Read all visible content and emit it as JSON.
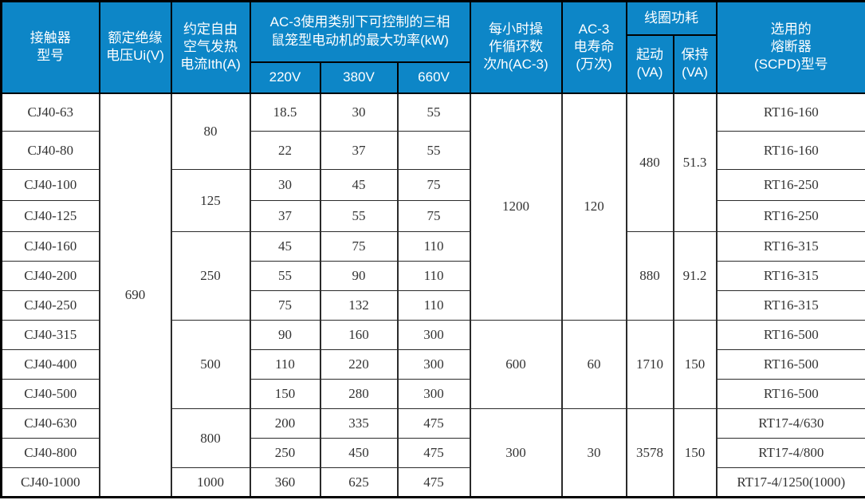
{
  "colors": {
    "header_bg": "#0d86c7",
    "header_text": "#ffffff",
    "border": "#000000",
    "body_text": "#333333"
  },
  "table": {
    "header_rows": [
      [
        {
          "t": "接触器\n型号",
          "rs": 3
        },
        {
          "t": "额定绝缘\n电压Ui(V)",
          "rs": 3
        },
        {
          "t": "约定自由\n空气发热\n电流Ith(A)",
          "rs": 3
        },
        {
          "t": "AC-3使用类别下可控制的三相\n鼠笼型电动机的最大功率(kW)",
          "rs": 2,
          "cs": 3
        },
        {
          "t": "每小时操\n作循环数\n次/h(AC-3)",
          "rs": 3
        },
        {
          "t": "AC-3\n电寿命\n(万次)",
          "rs": 3
        },
        {
          "t": "线圈功耗",
          "cs": 2
        },
        {
          "t": "选用的\n熔断器\n(SCPD)型号",
          "rs": 3
        }
      ],
      [
        {
          "t": "起动\n(VA)",
          "rs": 2
        },
        {
          "t": "保持\n(VA)",
          "rs": 2
        }
      ],
      [
        {
          "t": "220V"
        },
        {
          "t": "380V"
        },
        {
          "t": "660V"
        }
      ]
    ],
    "rows": [
      [
        {
          "t": "CJ40-63"
        },
        {
          "t": "690",
          "rs": 13
        },
        {
          "t": "80",
          "rs": 2
        },
        {
          "t": "18.5"
        },
        {
          "t": "30"
        },
        {
          "t": "55"
        },
        {
          "t": "1200",
          "rs": 7
        },
        {
          "t": "120",
          "rs": 7
        },
        {
          "t": "480",
          "rs": 4
        },
        {
          "t": "51.3",
          "rs": 4
        },
        {
          "t": "RT16-160"
        }
      ],
      [
        {
          "t": "CJ40-80"
        },
        {
          "t": "22"
        },
        {
          "t": "37"
        },
        {
          "t": "55"
        },
        {
          "t": "RT16-160"
        }
      ],
      [
        {
          "t": "CJ40-100"
        },
        {
          "t": "125",
          "rs": 2
        },
        {
          "t": "30"
        },
        {
          "t": "45"
        },
        {
          "t": "75"
        },
        {
          "t": "RT16-250"
        }
      ],
      [
        {
          "t": "CJ40-125"
        },
        {
          "t": "37"
        },
        {
          "t": "55"
        },
        {
          "t": "75"
        },
        {
          "t": "RT16-250"
        }
      ],
      [
        {
          "t": "CJ40-160"
        },
        {
          "t": "250",
          "rs": 3
        },
        {
          "t": "45"
        },
        {
          "t": "75"
        },
        {
          "t": "110"
        },
        {
          "t": "880",
          "rs": 3
        },
        {
          "t": "91.2",
          "rs": 3
        },
        {
          "t": "RT16-315"
        }
      ],
      [
        {
          "t": "CJ40-200"
        },
        {
          "t": "55"
        },
        {
          "t": "90"
        },
        {
          "t": "110"
        },
        {
          "t": "RT16-315"
        }
      ],
      [
        {
          "t": "CJ40-250"
        },
        {
          "t": "75"
        },
        {
          "t": "132"
        },
        {
          "t": "110"
        },
        {
          "t": "RT16-315"
        }
      ],
      [
        {
          "t": "CJ40-315"
        },
        {
          "t": "500",
          "rs": 3
        },
        {
          "t": "90"
        },
        {
          "t": "160"
        },
        {
          "t": "300"
        },
        {
          "t": "600",
          "rs": 3
        },
        {
          "t": "60",
          "rs": 3
        },
        {
          "t": "1710",
          "rs": 3
        },
        {
          "t": "150",
          "rs": 3
        },
        {
          "t": "RT16-500"
        }
      ],
      [
        {
          "t": "CJ40-400"
        },
        {
          "t": "110"
        },
        {
          "t": "220"
        },
        {
          "t": "300"
        },
        {
          "t": "RT16-500"
        }
      ],
      [
        {
          "t": "CJ40-500"
        },
        {
          "t": "150"
        },
        {
          "t": "280"
        },
        {
          "t": "300"
        },
        {
          "t": "RT16-500"
        }
      ],
      [
        {
          "t": "CJ40-630"
        },
        {
          "t": "800",
          "rs": 2
        },
        {
          "t": "200"
        },
        {
          "t": "335"
        },
        {
          "t": "475"
        },
        {
          "t": "300",
          "rs": 3
        },
        {
          "t": "30",
          "rs": 3
        },
        {
          "t": "3578",
          "rs": 3
        },
        {
          "t": "150",
          "rs": 3
        },
        {
          "t": "RT17-4/630"
        }
      ],
      [
        {
          "t": "CJ40-800"
        },
        {
          "t": "250"
        },
        {
          "t": "450"
        },
        {
          "t": "475"
        },
        {
          "t": "RT17-4/800"
        }
      ],
      [
        {
          "t": "CJ40-1000"
        },
        {
          "t": "1000"
        },
        {
          "t": "360"
        },
        {
          "t": "625"
        },
        {
          "t": "475"
        },
        {
          "t": "RT17-4/1250(1000)"
        }
      ]
    ]
  }
}
